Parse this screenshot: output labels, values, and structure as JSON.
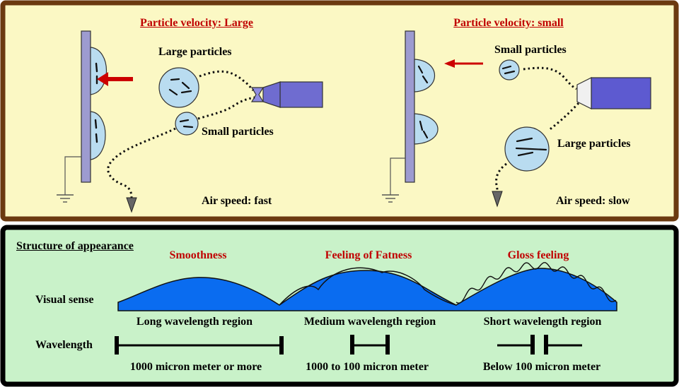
{
  "top_left": {
    "title": "Particle velocity: Large",
    "large_particles": "Large particles",
    "small_particles": "Small particles",
    "air_speed": "Air speed: fast"
  },
  "top_right": {
    "title": "Particle velocity: small",
    "small_particles": "Small particles",
    "large_particles": "Large particles",
    "air_speed": "Air speed: slow"
  },
  "bottom": {
    "heading": "Structure of appearance",
    "row_visual": "Visual sense",
    "row_wavelength": "Wavelength",
    "columns": [
      {
        "quality": "Smoothness",
        "region": "Long wavelength region",
        "range": "1000 micron meter or more"
      },
      {
        "quality": "Feeling of Fatness",
        "region": "Medium wavelength region",
        "range": "1000 to 100 micron meter"
      },
      {
        "quality": "Gloss feeling",
        "region": "Short wavelength region",
        "range": "Below 100 micron meter"
      }
    ]
  },
  "colors": {
    "top_panel_fill": "#fbf8c4",
    "top_panel_border": "#6b3a10",
    "bottom_panel_fill": "#c9f2c9",
    "bottom_panel_border": "#000000",
    "wave_fill": "#0a6cf0",
    "particle_fill": "#b9dcf0",
    "plate_fill": "#9d9bd0",
    "nozzle_fill": "#6f6cd0",
    "arrow_red": "#cc0000",
    "title_red": "#c00000"
  }
}
